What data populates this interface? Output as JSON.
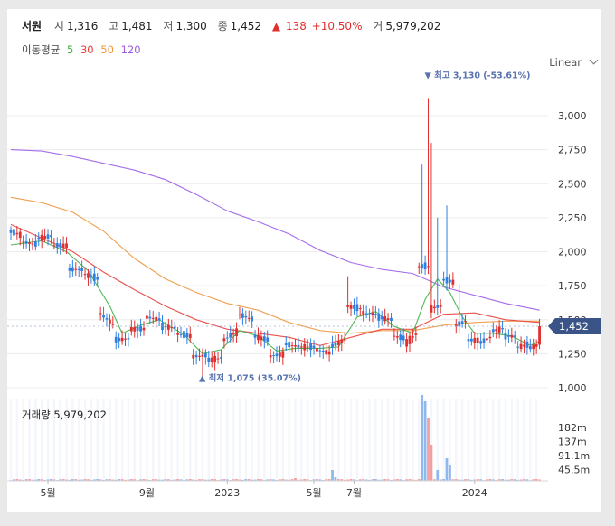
{
  "header": {
    "name": "서원",
    "open_label": "시",
    "open": "1,316",
    "high_label": "고",
    "high": "1,481",
    "low_label": "저",
    "low": "1,300",
    "close_label": "종",
    "close": "1,452",
    "change_arrow": "▲",
    "change": "138",
    "change_pct": "+10.50%",
    "volume_label": "거",
    "volume": "5,979,202"
  },
  "ma_legend": {
    "label": "이동평균",
    "ma5": "5",
    "ma30": "30",
    "ma50": "50",
    "ma120": "120"
  },
  "scale_selector": {
    "value": "Linear"
  },
  "volume_legend": {
    "label": "거래량",
    "value": "5,979,202"
  },
  "colors": {
    "up": "#e0302e",
    "down": "#2f80e0",
    "ma5": "#3cb043",
    "ma30": "#e8403c",
    "ma50": "#f0963c",
    "ma120": "#9b5de5",
    "price_tag": "#3a5487",
    "annotation": "#5a74b0"
  },
  "chart_data": {
    "type": "candlestick",
    "price_axis": {
      "min": 1000,
      "max": 3250,
      "ticks": [
        "3,000",
        "2,750",
        "2,500",
        "2,250",
        "2,000",
        "1,750",
        "1,500",
        "1,250",
        "1,000"
      ]
    },
    "volume_axis": {
      "ticks": [
        "182m",
        "137m",
        "91.1m",
        "45.5m"
      ]
    },
    "time_labels": [
      "5월",
      "9월",
      "2023",
      "5월",
      "7월",
      "2024"
    ],
    "current_price": {
      "value": 1452,
      "label": "1,452"
    },
    "high_annotation": {
      "value": 3130,
      "label": "▼ 최고 3,130 (-53.61%)"
    },
    "low_annotation": {
      "value": 1075,
      "label": "▲ 최저 1,075 (35.07%)"
    },
    "anchors": [
      [
        0,
        2100,
        2150
      ],
      [
        4,
        2120,
        2070
      ],
      [
        9,
        2050,
        2100
      ],
      [
        14,
        2120,
        2050
      ],
      [
        19,
        2050,
        1870
      ],
      [
        24,
        1870,
        1840
      ],
      [
        29,
        1800,
        1550
      ],
      [
        34,
        1450,
        1350
      ],
      [
        39,
        1360,
        1430
      ],
      [
        44,
        1430,
        1520
      ],
      [
        49,
        1500,
        1450
      ],
      [
        54,
        1440,
        1400
      ],
      [
        59,
        1380,
        1230
      ],
      [
        64,
        1240,
        1200
      ],
      [
        69,
        1220,
        1350
      ],
      [
        74,
        1420,
        1540
      ],
      [
        79,
        1500,
        1380
      ],
      [
        84,
        1350,
        1230
      ],
      [
        89,
        1250,
        1320
      ],
      [
        94,
        1300,
        1300
      ],
      [
        99,
        1300,
        1280
      ],
      [
        104,
        1250,
        1300
      ],
      [
        109,
        1360,
        1600
      ],
      [
        114,
        1580,
        1550
      ],
      [
        119,
        1540,
        1520
      ],
      [
        124,
        1500,
        1380
      ],
      [
        128,
        1360,
        1320
      ],
      [
        132,
        1400,
        1900
      ],
      [
        136,
        1900,
        1580
      ],
      [
        140,
        1600,
        1800
      ],
      [
        144,
        1780,
        1460
      ],
      [
        148,
        1500,
        1350
      ],
      [
        152,
        1350,
        1330
      ],
      [
        156,
        1380,
        1420
      ],
      [
        160,
        1440,
        1380
      ],
      [
        164,
        1380,
        1300
      ],
      [
        168,
        1320,
        1290
      ],
      [
        171,
        1316,
        1452
      ]
    ],
    "spikes": {
      "133": 2640,
      "135": 3130,
      "136": 2800,
      "138": 2250,
      "141": 2340,
      "145": 1760,
      "109": 1820,
      "104": 1380
    },
    "ma5": [
      [
        0,
        2050
      ],
      [
        10,
        2080
      ],
      [
        18,
        2000
      ],
      [
        25,
        1860
      ],
      [
        32,
        1600
      ],
      [
        36,
        1400
      ],
      [
        42,
        1460
      ],
      [
        48,
        1500
      ],
      [
        56,
        1390
      ],
      [
        62,
        1250
      ],
      [
        68,
        1280
      ],
      [
        74,
        1420
      ],
      [
        80,
        1380
      ],
      [
        86,
        1270
      ],
      [
        92,
        1290
      ],
      [
        100,
        1290
      ],
      [
        106,
        1300
      ],
      [
        112,
        1520
      ],
      [
        118,
        1560
      ],
      [
        124,
        1450
      ],
      [
        130,
        1400
      ],
      [
        134,
        1650
      ],
      [
        138,
        1800
      ],
      [
        142,
        1700
      ],
      [
        146,
        1520
      ],
      [
        150,
        1400
      ],
      [
        156,
        1400
      ],
      [
        162,
        1380
      ],
      [
        168,
        1310
      ],
      [
        171,
        1340
      ]
    ],
    "ma30": [
      [
        0,
        2200
      ],
      [
        10,
        2100
      ],
      [
        20,
        2000
      ],
      [
        30,
        1850
      ],
      [
        40,
        1720
      ],
      [
        50,
        1600
      ],
      [
        60,
        1500
      ],
      [
        70,
        1430
      ],
      [
        80,
        1400
      ],
      [
        90,
        1370
      ],
      [
        100,
        1310
      ],
      [
        110,
        1370
      ],
      [
        120,
        1430
      ],
      [
        130,
        1430
      ],
      [
        140,
        1540
      ],
      [
        150,
        1550
      ],
      [
        160,
        1500
      ],
      [
        171,
        1480
      ]
    ],
    "ma50": [
      [
        0,
        2400
      ],
      [
        10,
        2360
      ],
      [
        20,
        2290
      ],
      [
        30,
        2150
      ],
      [
        40,
        1950
      ],
      [
        50,
        1800
      ],
      [
        60,
        1700
      ],
      [
        70,
        1620
      ],
      [
        80,
        1570
      ],
      [
        90,
        1480
      ],
      [
        100,
        1420
      ],
      [
        110,
        1400
      ],
      [
        120,
        1420
      ],
      [
        130,
        1420
      ],
      [
        140,
        1460
      ],
      [
        150,
        1480
      ],
      [
        160,
        1490
      ],
      [
        171,
        1490
      ]
    ],
    "ma120": [
      [
        0,
        2750
      ],
      [
        10,
        2740
      ],
      [
        20,
        2700
      ],
      [
        30,
        2650
      ],
      [
        40,
        2600
      ],
      [
        50,
        2530
      ],
      [
        60,
        2420
      ],
      [
        70,
        2300
      ],
      [
        80,
        2220
      ],
      [
        90,
        2130
      ],
      [
        100,
        2010
      ],
      [
        110,
        1920
      ],
      [
        120,
        1870
      ],
      [
        130,
        1840
      ],
      [
        140,
        1740
      ],
      [
        150,
        1680
      ],
      [
        160,
        1620
      ],
      [
        171,
        1570
      ]
    ],
    "volume_spikes": {
      "133": 95,
      "134": 88,
      "135": 70,
      "136": 40,
      "138": 12,
      "141": 25,
      "142": 18,
      "104": 12,
      "105": 4,
      "92": 3,
      "84": 2
    }
  }
}
